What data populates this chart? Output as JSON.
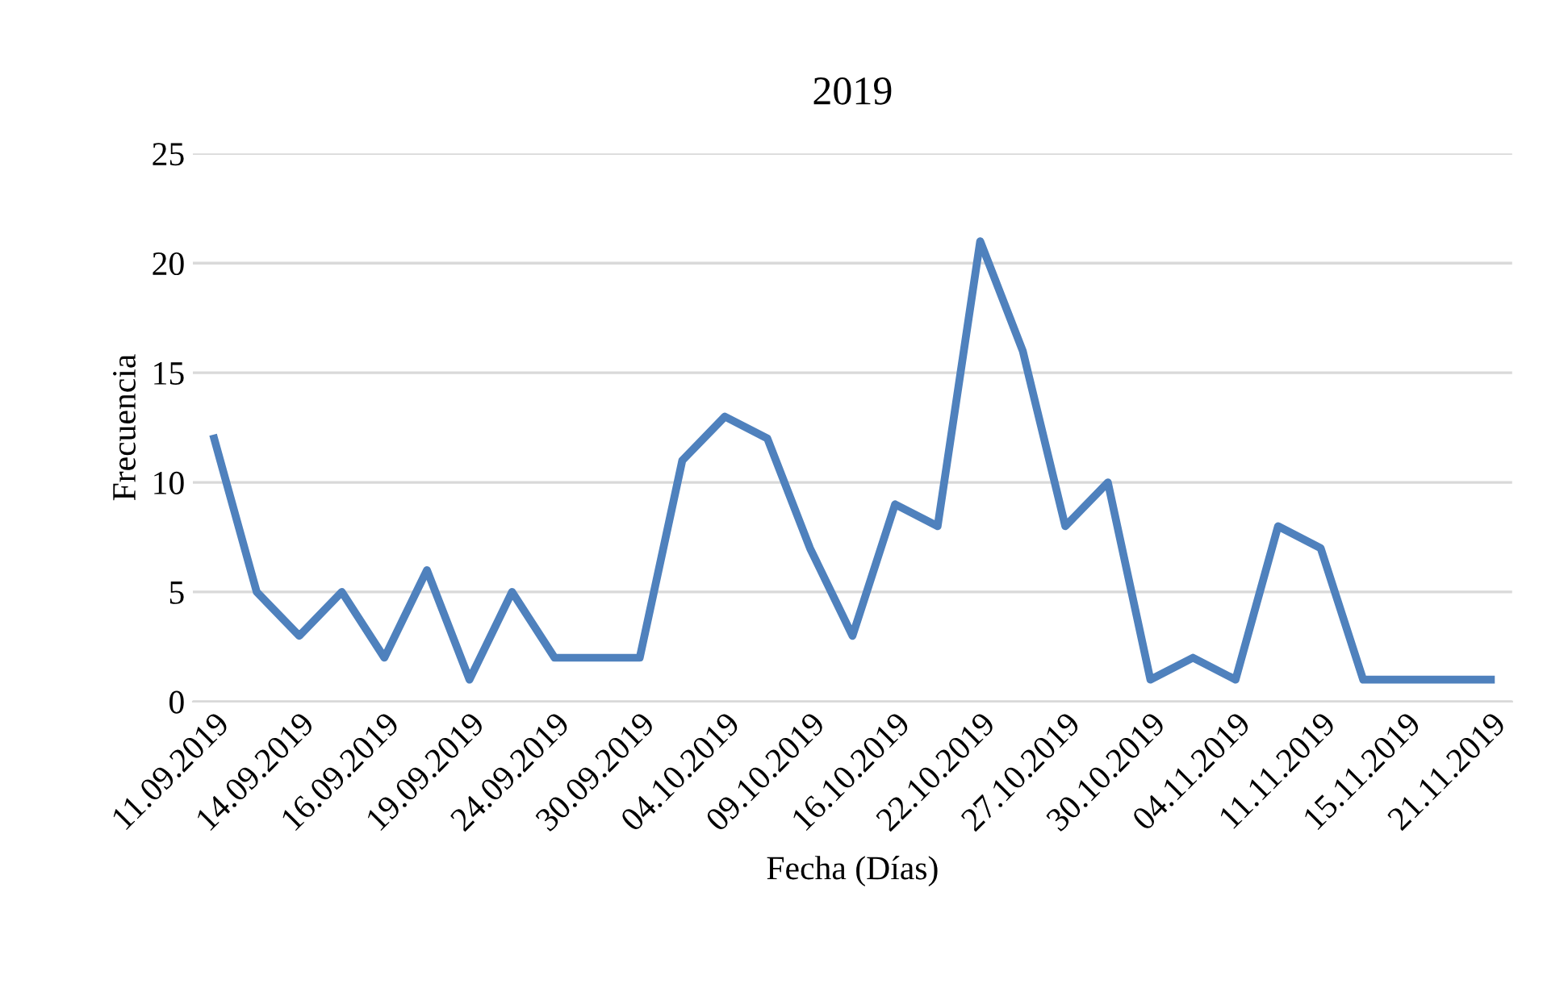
{
  "chart_data": {
    "type": "line",
    "title": "2019",
    "xlabel": "Fecha (Días)",
    "ylabel": "Frecuencia",
    "categories": [
      "11.09.2019",
      null,
      "14.09.2019",
      null,
      "16.09.2019",
      null,
      "19.09.2019",
      null,
      "24.09.2019",
      null,
      "30.09.2019",
      null,
      "04.10.2019",
      null,
      "09.10.2019",
      null,
      "16.10.2019",
      null,
      "22.10.2019",
      null,
      "27.10.2019",
      null,
      "30.10.2019",
      null,
      "04.11.2019",
      null,
      "11.11.2019",
      null,
      "15.11.2019",
      null,
      "21.11.2019"
    ],
    "series": [
      {
        "color": "#4f81bd",
        "values": [
          12,
          5,
          3,
          5,
          2,
          6,
          1,
          5,
          2,
          2,
          2,
          11,
          13,
          12,
          7,
          3,
          9,
          8,
          21,
          16,
          8,
          10,
          1,
          2,
          1,
          8,
          7,
          1,
          1,
          1,
          1
        ]
      }
    ],
    "ylim": [
      0,
      25
    ],
    "yticks": [
      0,
      5,
      10,
      15,
      20,
      25
    ],
    "grid": "y",
    "marker": "none",
    "line_style": "solid"
  }
}
